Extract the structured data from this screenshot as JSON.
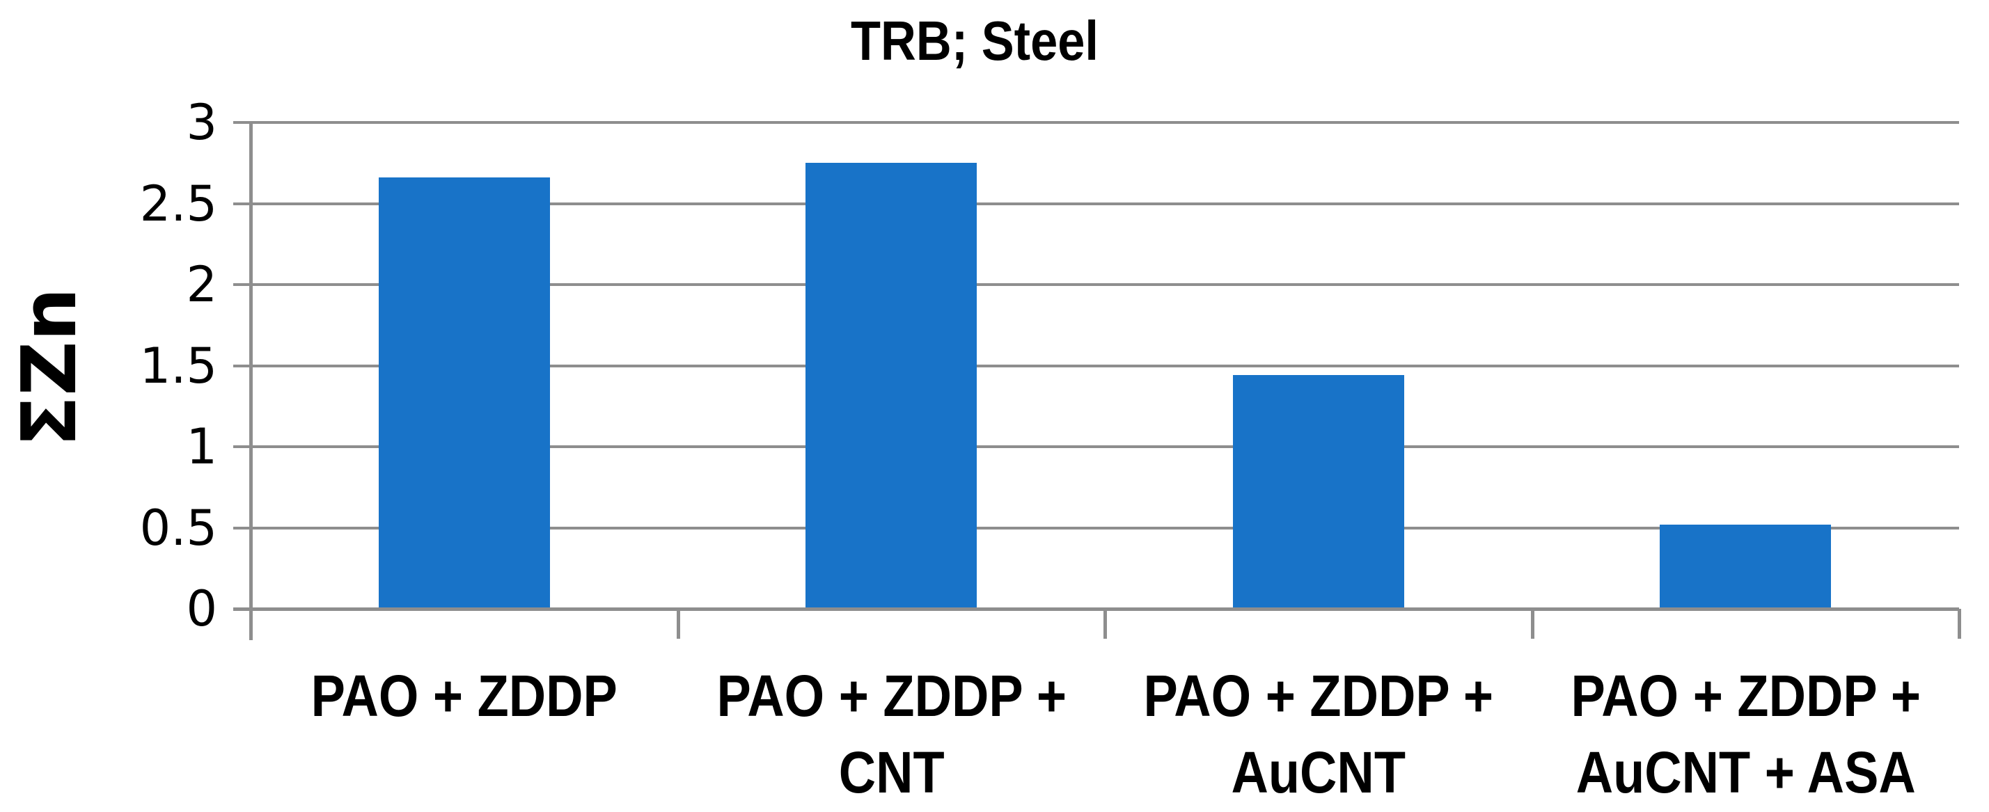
{
  "chart_data": {
    "type": "bar",
    "title": "TRB; Steel",
    "ylabel": "ΣZn",
    "xlabel": "",
    "categories": [
      "PAO + ZDDP",
      "PAO + ZDDP + CNT",
      "PAO + ZDDP + AuCNT",
      "PAO + ZDDP + AuCNT + ASA"
    ],
    "category_label_lines": [
      [
        "PAO + ZDDP"
      ],
      [
        "PAO + ZDDP +",
        "CNT"
      ],
      [
        "PAO + ZDDP +",
        "AuCNT"
      ],
      [
        "PAO + ZDDP +",
        "AuCNT + ASA"
      ]
    ],
    "values": [
      2.66,
      2.75,
      1.44,
      0.52
    ],
    "ylim": [
      0,
      3
    ],
    "yticks": [
      0,
      0.5,
      1,
      1.5,
      2,
      2.5,
      3
    ],
    "ytick_labels": [
      "0",
      "0.5",
      "1",
      "1.5",
      "2",
      "2.5",
      "3"
    ],
    "grid": true,
    "legend": "none",
    "colors": {
      "bar": "#1873C8",
      "grid": "#8E8E8E",
      "axis": "#8E8E8E",
      "text": "#000000",
      "background": "#FFFFFF"
    }
  }
}
